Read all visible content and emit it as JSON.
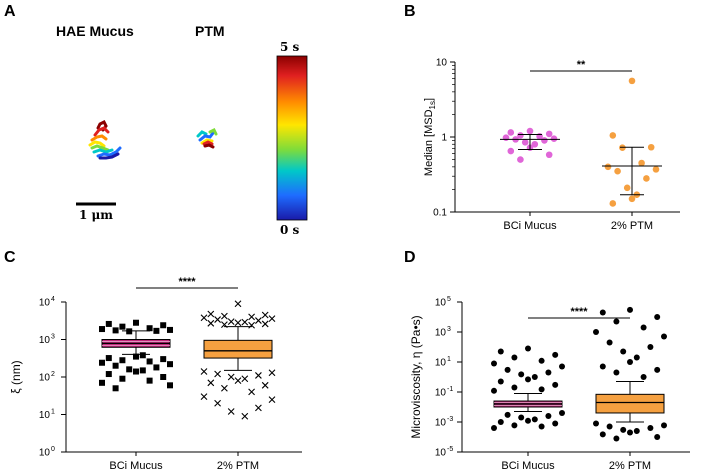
{
  "panelA": {
    "letter": "A",
    "label_hae": "HAE Mucus",
    "label_ptm": "PTM",
    "scale_bar_label": "1 μm",
    "colorbar_top": "5 s",
    "colorbar_bottom": "0 s",
    "colormap": [
      "#8b0000",
      "#e02020",
      "#ff8c00",
      "#ffe600",
      "#7fdc3a",
      "#00c8c8",
      "#1e6cff",
      "#1a1aa8"
    ]
  },
  "chart_data": [
    {
      "panel": "B",
      "type": "scatter",
      "yscale": "log",
      "ylim": [
        0.1,
        10
      ],
      "yticks": [
        "0.1",
        "1",
        "10"
      ],
      "ytick_values": [
        0.1,
        1,
        10
      ],
      "ylabel": "Median [MSD",
      "ylabel_sub": "1s",
      "ylabel_end": "]",
      "categories": [
        "BCi Mucus",
        "2% PTM"
      ],
      "colors": [
        "#e066d8",
        "#f5a040"
      ],
      "series": [
        {
          "name": "BCi Mucus",
          "values": [
            1.2,
            1.15,
            1.1,
            1.05,
            1.02,
            0.98,
            0.95,
            0.93,
            0.9,
            0.85,
            0.8,
            0.72,
            0.65,
            0.58,
            0.5
          ],
          "median": 0.93,
          "q1": 0.68,
          "q3": 1.08
        },
        {
          "name": "2% PTM",
          "values": [
            5.6,
            1.05,
            0.73,
            0.72,
            0.45,
            0.4,
            0.37,
            0.35,
            0.28,
            0.21,
            0.17,
            0.15,
            0.13
          ],
          "median": 0.41,
          "q1": 0.17,
          "q3": 0.73
        }
      ],
      "significance": "**"
    },
    {
      "panel": "C",
      "type": "box",
      "yscale": "log",
      "ylim": [
        1,
        10000
      ],
      "yticks": [
        "10",
        "10",
        "10",
        "10",
        "10"
      ],
      "ytick_exponents": [
        "0",
        "1",
        "2",
        "3",
        "4"
      ],
      "ytick_values": [
        1,
        10,
        100,
        1000,
        10000
      ],
      "ylabel": "ξ (nm)",
      "categories": [
        "BCi Mucus",
        "2% PTM"
      ],
      "boxes": [
        {
          "name": "BCi Mucus",
          "q1": 620,
          "median": 790,
          "q3": 1000,
          "whisker_low": 400,
          "whisker_high": 1700,
          "fill": "#c0287a",
          "marker": "square"
        },
        {
          "name": "2% PTM",
          "q1": 320,
          "median": 500,
          "q3": 950,
          "whisker_low": 150,
          "whisker_high": 2200,
          "fill": "#f5a040",
          "marker": "x"
        }
      ],
      "outliers": [
        {
          "name": "BCi Mucus",
          "values": [
            2800,
            2600,
            2400,
            2200,
            2000,
            1900,
            1800,
            1750,
            1700,
            1650,
            380,
            350,
            320,
            300,
            280,
            260,
            240,
            220,
            200,
            180,
            160,
            150,
            140,
            120,
            100,
            90,
            80,
            70,
            60,
            50
          ]
        },
        {
          "name": "2% PTM",
          "values": [
            9000,
            4800,
            4500,
            4200,
            4000,
            3800,
            3600,
            3400,
            3200,
            3000,
            2900,
            2800,
            2700,
            2600,
            2500,
            2400,
            140,
            130,
            120,
            110,
            100,
            90,
            80,
            70,
            60,
            50,
            40,
            30,
            25,
            20,
            15,
            12,
            9
          ]
        }
      ],
      "significance": "****"
    },
    {
      "panel": "D",
      "type": "box",
      "yscale": "log",
      "ylim": [
        1e-05,
        100000
      ],
      "yticks": [
        "10",
        "10",
        "10",
        "10",
        "10",
        "10"
      ],
      "ytick_exponents": [
        "-5",
        "-3",
        "-1",
        "1",
        "3",
        "5"
      ],
      "ytick_values": [
        1e-05,
        0.001,
        0.1,
        10,
        1000,
        100000
      ],
      "ylabel": "Microviscosity, η (Pa•s)",
      "categories": [
        "BCi Mucus",
        "2% PTM"
      ],
      "boxes": [
        {
          "name": "BCi Mucus",
          "q1": 0.01,
          "median": 0.016,
          "q3": 0.025,
          "whisker_low": 0.005,
          "whisker_high": 0.08,
          "fill": "#c0287a",
          "marker": "dot"
        },
        {
          "name": "2% PTM",
          "q1": 0.004,
          "median": 0.02,
          "q3": 0.07,
          "whisker_low": 0.001,
          "whisker_high": 0.5,
          "fill": "#f5a040",
          "marker": "dot"
        }
      ],
      "outliers": [
        {
          "name": "BCi Mucus",
          "values": [
            80,
            50,
            30,
            20,
            12,
            8,
            5,
            3,
            2,
            1.5,
            1,
            0.7,
            0.5,
            0.3,
            0.2,
            0.15,
            0.12,
            0.004,
            0.003,
            0.0025,
            0.002,
            0.0015,
            0.0012,
            0.001,
            0.0008,
            0.0006,
            0.0005,
            0.0004
          ]
        },
        {
          "name": "2% PTM",
          "values": [
            30000,
            20000,
            10000,
            5000,
            2000,
            1000,
            500,
            200,
            100,
            50,
            20,
            10,
            5,
            3,
            2,
            1,
            0.0008,
            0.0006,
            0.0005,
            0.0004,
            0.0003,
            0.00025,
            0.0002,
            0.00015,
            0.0001,
            8e-05
          ]
        }
      ],
      "significance": "****"
    }
  ]
}
